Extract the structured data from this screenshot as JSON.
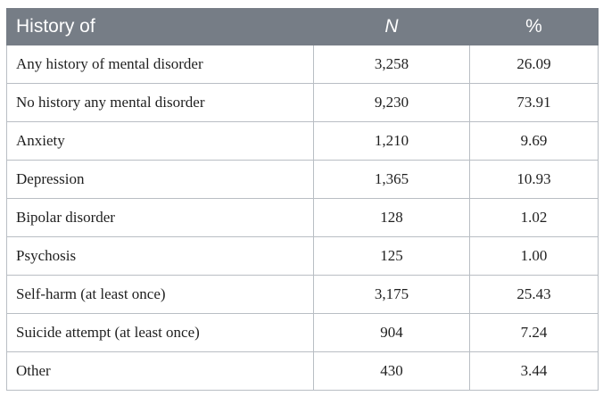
{
  "table": {
    "headers": [
      "History of",
      "N",
      "%"
    ],
    "rows": [
      {
        "label": "Any history of mental disorder",
        "n": "3,258",
        "pct": "26.09"
      },
      {
        "label": "No history any mental disorder",
        "n": "9,230",
        "pct": "73.91"
      },
      {
        "label": "Anxiety",
        "n": "1,210",
        "pct": "9.69"
      },
      {
        "label": "Depression",
        "n": "1,365",
        "pct": "10.93"
      },
      {
        "label": "Bipolar disorder",
        "n": "128",
        "pct": "1.02"
      },
      {
        "label": "Psychosis",
        "n": "125",
        "pct": "1.00"
      },
      {
        "label": "Self-harm (at least once)",
        "n": "3,175",
        "pct": "25.43"
      },
      {
        "label": "Suicide attempt (at least once)",
        "n": "904",
        "pct": "7.24"
      },
      {
        "label": "Other",
        "n": "430",
        "pct": "3.44"
      }
    ]
  },
  "colors": {
    "header_bg": "#767d86",
    "header_text": "#ffffff",
    "border": "#b9bec4"
  }
}
